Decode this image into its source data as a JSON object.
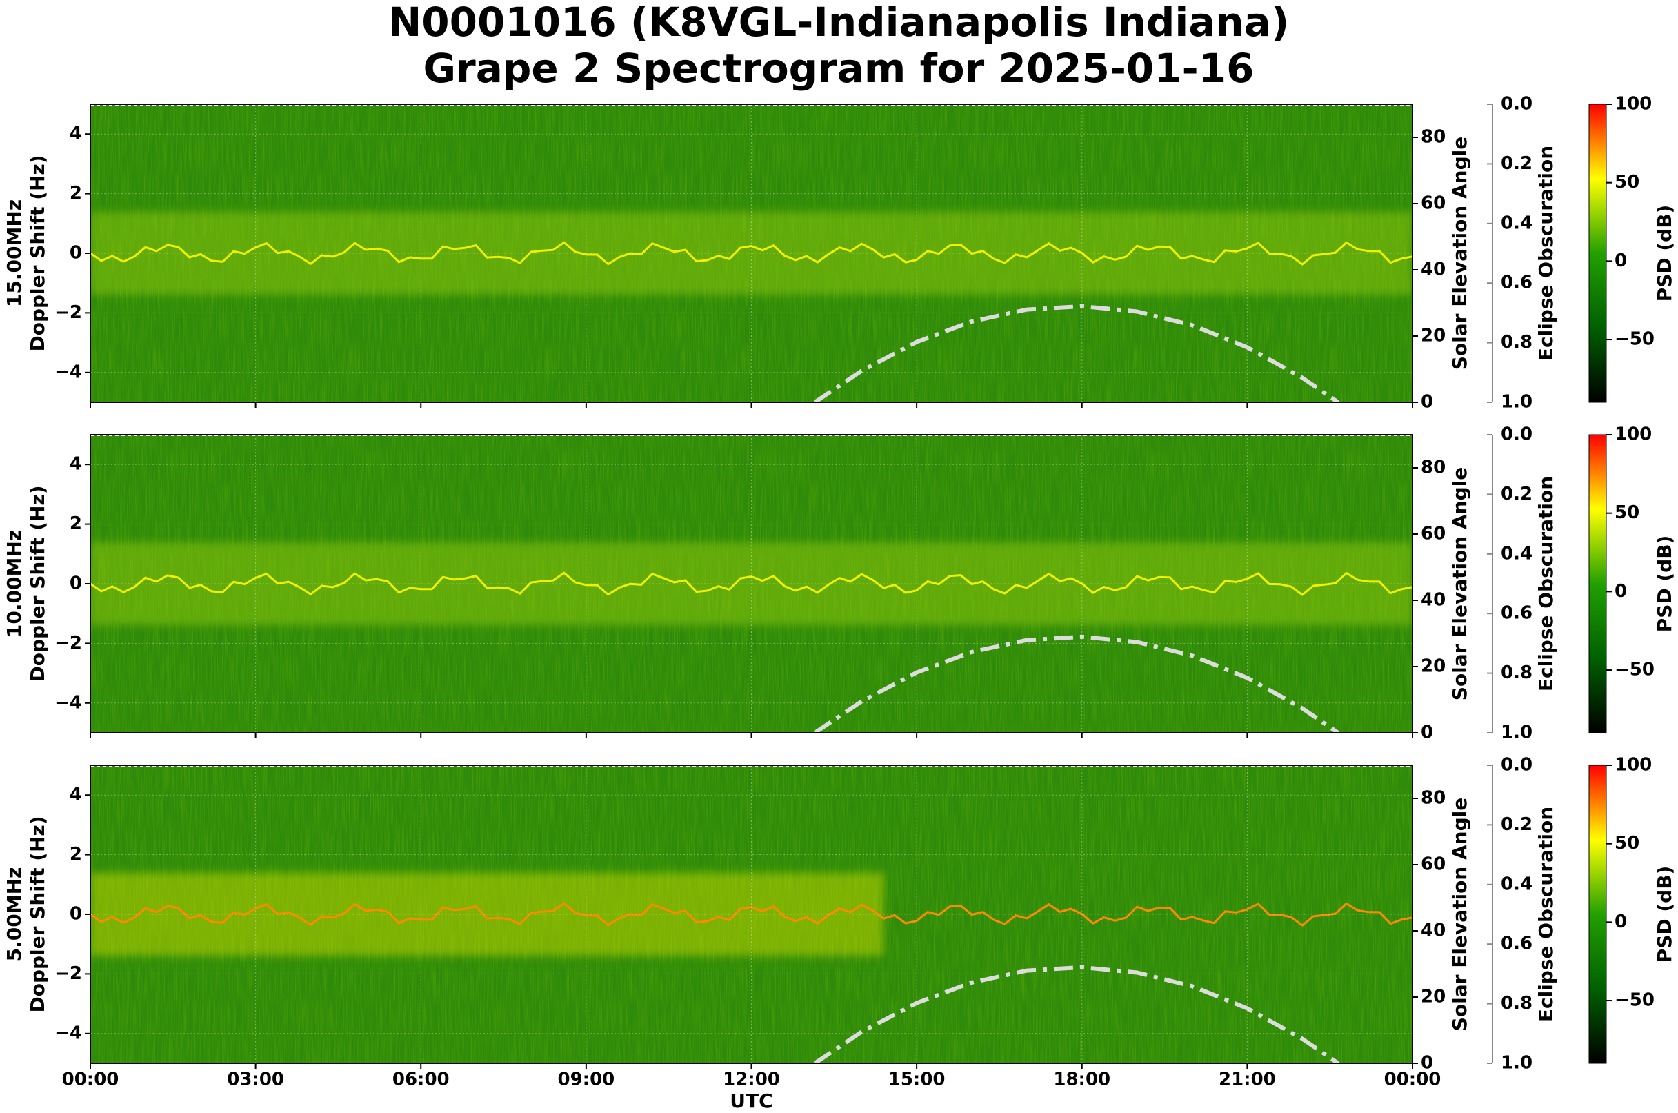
{
  "title": [
    "N0001016 (K8VGL-Indianapolis Indiana)",
    "Grape 2 Spectrogram for 2025-01-16"
  ],
  "chart_data": [
    {
      "type": "spectrogram",
      "band": "15.00MHz",
      "ylabel": "Doppler Shift (Hz)",
      "ylim": [
        -5,
        5
      ],
      "yticks": [
        {
          "value": -4,
          "label": "−4"
        },
        {
          "value": -2,
          "label": "−2"
        },
        0,
        2,
        4
      ],
      "y2label": "Solar Elevation Angle",
      "y2lim": [
        0,
        90
      ],
      "y2ticks": [
        0,
        20,
        40,
        60,
        80
      ],
      "series": [
        {
          "axis": "y2",
          "color": "#dcdcdc",
          "x": [
            13.15,
            14,
            15,
            16,
            17,
            18,
            19,
            20,
            21,
            22,
            22.65
          ],
          "values": [
            0,
            9.5,
            18.2,
            24.4,
            28,
            29,
            27.4,
            23.3,
            16.6,
            7.4,
            0
          ]
        }
      ],
      "eclipse_label": "Eclipse Obscuration",
      "eclipse_lim": [
        1,
        0
      ],
      "eclipse_ticks": [
        {
          "value": 0,
          "label": "0.0"
        },
        0.2,
        0.4,
        0.6,
        0.8,
        {
          "value": 1,
          "label": "1.0"
        }
      ],
      "colorbar_label": "PSD (dB)",
      "colorbar_lim": [
        -90,
        100
      ],
      "colorbar_ticks": [
        {
          "value": -50,
          "label": "−50"
        },
        0,
        50,
        100
      ],
      "colormap": [
        "#000000",
        "#006000",
        "#22a000",
        "#ffff00",
        "#ff0000"
      ]
    },
    {
      "type": "spectrogram",
      "band": "10.00MHz",
      "ylabel": "Doppler Shift (Hz)",
      "ylim": [
        -5,
        5
      ],
      "yticks": [
        {
          "value": -4,
          "label": "−4"
        },
        {
          "value": -2,
          "label": "−2"
        },
        0,
        2,
        4
      ],
      "y2label": "Solar Elevation Angle",
      "y2lim": [
        0,
        90
      ],
      "y2ticks": [
        0,
        20,
        40,
        60,
        80
      ],
      "series": [
        {
          "axis": "y2",
          "color": "#dcdcdc",
          "x": [
            13.15,
            14,
            15,
            16,
            17,
            18,
            19,
            20,
            21,
            22,
            22.65
          ],
          "values": [
            0,
            9.5,
            18.2,
            24.4,
            28,
            29,
            27.4,
            23.3,
            16.6,
            7.4,
            0
          ]
        }
      ],
      "eclipse_label": "Eclipse Obscuration",
      "eclipse_lim": [
        1,
        0
      ],
      "eclipse_ticks": [
        {
          "value": 0,
          "label": "0.0"
        },
        0.2,
        0.4,
        0.6,
        0.8,
        {
          "value": 1,
          "label": "1.0"
        }
      ],
      "colorbar_label": "PSD (dB)",
      "colorbar_lim": [
        -90,
        100
      ],
      "colorbar_ticks": [
        {
          "value": -50,
          "label": "−50"
        },
        0,
        50,
        100
      ],
      "colormap": [
        "#000000",
        "#006000",
        "#22a000",
        "#ffff00",
        "#ff0000"
      ]
    },
    {
      "type": "spectrogram",
      "band": "5.00MHz",
      "ylabel": "Doppler Shift (Hz)",
      "ylim": [
        -5,
        5
      ],
      "yticks": [
        {
          "value": -4,
          "label": "−4"
        },
        {
          "value": -2,
          "label": "−2"
        },
        0,
        2,
        4
      ],
      "y2label": "Solar Elevation Angle",
      "y2lim": [
        0,
        90
      ],
      "y2ticks": [
        0,
        20,
        40,
        60,
        80
      ],
      "series": [
        {
          "axis": "y2",
          "color": "#dcdcdc",
          "x": [
            13.15,
            14,
            15,
            16,
            17,
            18,
            19,
            20,
            21,
            22,
            22.65
          ],
          "values": [
            0,
            9.5,
            18.2,
            24.4,
            28,
            29,
            27.4,
            23.3,
            16.6,
            7.4,
            0
          ]
        }
      ],
      "eclipse_label": "Eclipse Obscuration",
      "eclipse_lim": [
        1,
        0
      ],
      "eclipse_ticks": [
        {
          "value": 0,
          "label": "0.0"
        },
        0.2,
        0.4,
        0.6,
        0.8,
        {
          "value": 1,
          "label": "1.0"
        }
      ],
      "colorbar_label": "PSD (dB)",
      "colorbar_lim": [
        -90,
        100
      ],
      "colorbar_ticks": [
        {
          "value": -50,
          "label": "−50"
        },
        0,
        50,
        100
      ],
      "colormap": [
        "#000000",
        "#006000",
        "#22a000",
        "#ffff00",
        "#ff0000"
      ],
      "xlabel": "UTC",
      "xlim": [
        0,
        24
      ],
      "xticks": [
        {
          "value": 0,
          "label": "00:00"
        },
        {
          "value": 3,
          "label": "03:00"
        },
        {
          "value": 6,
          "label": "06:00"
        },
        {
          "value": 9,
          "label": "09:00"
        },
        {
          "value": 12,
          "label": "12:00"
        },
        {
          "value": 15,
          "label": "15:00"
        },
        {
          "value": 18,
          "label": "18:00"
        },
        {
          "value": 21,
          "label": "21:00"
        },
        {
          "value": 24,
          "label": "00:00"
        }
      ]
    }
  ]
}
